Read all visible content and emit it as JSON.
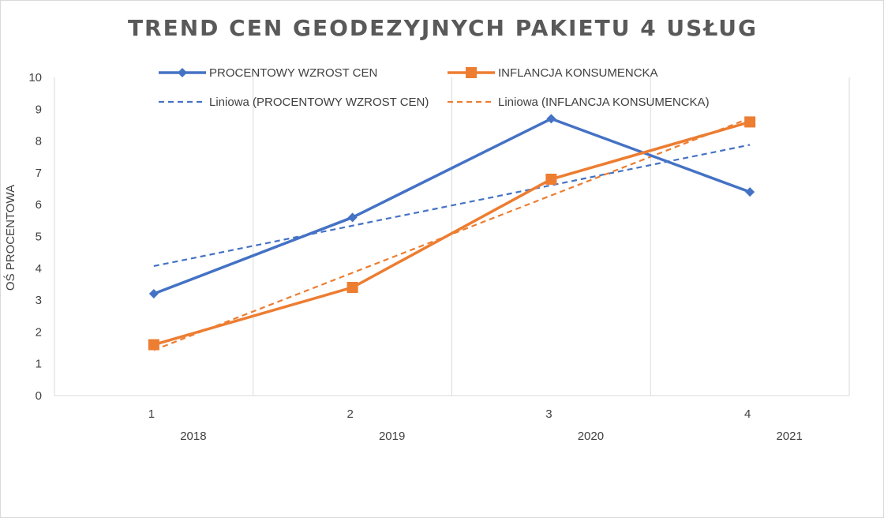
{
  "chart_data": {
    "type": "line",
    "title": "TREND CEN GEODEZYJNYCH PAKIETU 4 USŁUG",
    "xlabel": "",
    "ylabel": "OŚ PROCENTOWA",
    "x": [
      "1",
      "2",
      "3",
      "4"
    ],
    "x_secondary": [
      "2018",
      "2019",
      "2020",
      "2021"
    ],
    "ylim": [
      0,
      10
    ],
    "yticks": [
      "0",
      "1",
      "2",
      "3",
      "4",
      "5",
      "6",
      "7",
      "8",
      "9",
      "10"
    ],
    "grid": "vertical",
    "legend_position": "top",
    "series": [
      {
        "name": "PROCENTOWY WZROST CEN",
        "values": [
          3.2,
          5.6,
          8.7,
          6.4
        ],
        "color": "#4472c4",
        "marker": "diamond"
      },
      {
        "name": "INFLANCJA KONSUMENCKA",
        "values": [
          1.6,
          3.4,
          6.8,
          8.6
        ],
        "color": "#ed7d31",
        "marker": "square"
      }
    ],
    "trendlines": [
      {
        "name": "Liniowa (PROCENTOWY WZROST CEN)",
        "type": "linear",
        "values": [
          4.07,
          5.34,
          6.61,
          7.88
        ],
        "color": "#4472c4"
      },
      {
        "name": "Liniowa (INFLANCJA KONSUMENCKA)",
        "type": "linear",
        "values": [
          1.43,
          3.86,
          6.29,
          8.72
        ],
        "color": "#ed7d31"
      }
    ]
  }
}
